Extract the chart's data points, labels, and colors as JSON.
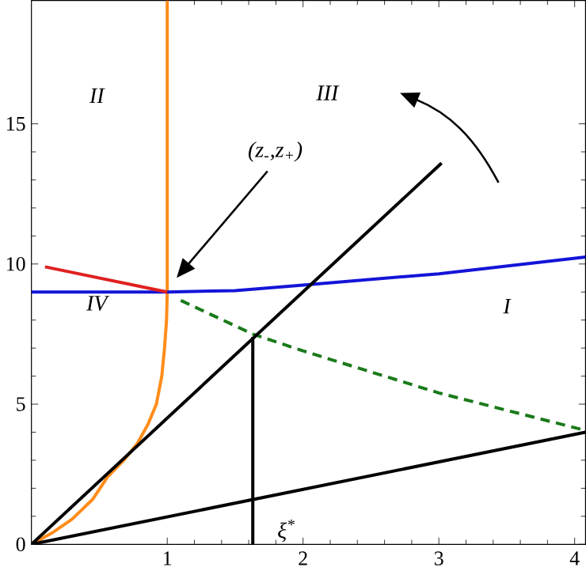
{
  "chart_data": {
    "type": "line",
    "xlim": [
      0,
      4.08
    ],
    "ylim": [
      0,
      19.4
    ],
    "xticks": [
      1,
      2,
      3,
      4
    ],
    "yticks": [
      0,
      5,
      10,
      15
    ],
    "grid": false,
    "series": [
      {
        "color": "#ff8c1a",
        "x": [
          0,
          0.15,
          0.3,
          0.45,
          0.56,
          0.68,
          0.78,
          0.86,
          0.92,
          0.96,
          0.98,
          0.995,
          1,
          1
        ],
        "values": [
          0,
          0.4,
          0.9,
          1.6,
          2.4,
          3.0,
          3.6,
          4.3,
          5,
          6,
          7,
          8,
          9,
          19.4
        ]
      },
      {
        "color": "#1414d8",
        "x": [
          0,
          1,
          1.5,
          2,
          3,
          4.08
        ],
        "values": [
          9,
          9,
          9.05,
          9.25,
          9.65,
          10.25
        ]
      },
      {
        "color": "#e02020",
        "x": [
          0.1,
          1
        ],
        "values": [
          9.9,
          9
        ]
      },
      {
        "color": "#1a7a1a",
        "line_style": "dashed",
        "x": [
          1.1,
          1.63,
          2,
          3,
          4.05
        ],
        "values": [
          8.7,
          7.5,
          6.9,
          5.4,
          4.1
        ]
      },
      {
        "color": "#000000",
        "x": [
          0,
          3.02
        ],
        "values": [
          0,
          13.6
        ]
      },
      {
        "color": "#000000",
        "x": [
          1.63,
          1.63
        ],
        "values": [
          0,
          7.4
        ]
      },
      {
        "color": "#000000",
        "x": [
          0,
          4.08
        ],
        "values": [
          0,
          4.0
        ]
      }
    ],
    "annotations": [
      "II",
      "III",
      "IV",
      "I",
      "(z$_{-}$,z$_{+}$)",
      "ξ$^{*}$"
    ]
  }
}
